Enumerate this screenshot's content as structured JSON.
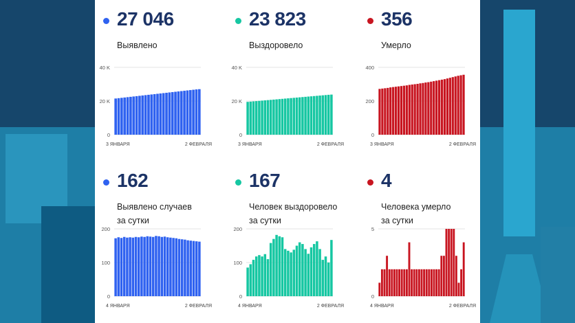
{
  "colors": {
    "blue": "#2f62f0",
    "teal": "#16c7a2",
    "red": "#c81520",
    "number": "#1c3366"
  },
  "cards": [
    {
      "value": "27 046",
      "label": [
        "Выявлено"
      ],
      "color": "#2f62f0"
    },
    {
      "value": "23 823",
      "label": [
        "Выздоровело"
      ],
      "color": "#16c7a2"
    },
    {
      "value": "356",
      "label": [
        "Умерло"
      ],
      "color": "#c81520"
    },
    {
      "value": "162",
      "label": [
        "Выявлено случаев",
        "за сутки"
      ],
      "color": "#2f62f0"
    },
    {
      "value": "167",
      "label": [
        "Человек выздоровело",
        "за сутки"
      ],
      "color": "#16c7a2"
    },
    {
      "value": "4",
      "label": [
        "Человека умерло",
        "за сутки"
      ],
      "color": "#c81520"
    }
  ],
  "chart_data": [
    {
      "type": "bar",
      "color": "#2f62f0",
      "ylim": [
        0,
        40000
      ],
      "yticks": [
        0,
        20000,
        40000
      ],
      "ytick_labels": [
        "0",
        "20 K",
        "40 K"
      ],
      "xtick_labels": [
        "3 ЯНВАРЯ",
        "2 ФЕВРАЛЯ"
      ],
      "grid": true,
      "values": [
        21500,
        21700,
        21900,
        22100,
        22300,
        22500,
        22700,
        22900,
        23100,
        23300,
        23500,
        23700,
        23900,
        24100,
        24300,
        24500,
        24700,
        24900,
        25100,
        25300,
        25500,
        25700,
        25900,
        26100,
        26300,
        26500,
        26700,
        26900,
        27046
      ]
    },
    {
      "type": "bar",
      "color": "#16c7a2",
      "ylim": [
        0,
        40000
      ],
      "yticks": [
        0,
        20000,
        40000
      ],
      "ytick_labels": [
        "0",
        "20 K",
        "40 K"
      ],
      "xtick_labels": [
        "3 ЯНВАРЯ",
        "2 ФЕВРАЛЯ"
      ],
      "grid": true,
      "values": [
        19500,
        19650,
        19800,
        19950,
        20100,
        20250,
        20400,
        20550,
        20700,
        20850,
        21000,
        21150,
        21300,
        21450,
        21600,
        21750,
        21900,
        22050,
        22200,
        22350,
        22500,
        22650,
        22800,
        22950,
        23100,
        23250,
        23400,
        23550,
        23700,
        23823
      ]
    },
    {
      "type": "bar",
      "color": "#c81520",
      "ylim": [
        0,
        400
      ],
      "yticks": [
        0,
        200,
        400
      ],
      "ytick_labels": [
        "0",
        "200",
        "400"
      ],
      "xtick_labels": [
        "3 ЯНВАРЯ",
        "2 ФЕВРАЛЯ"
      ],
      "grid": true,
      "values": [
        272,
        274,
        276,
        278,
        281,
        283,
        285,
        287,
        289,
        291,
        293,
        296,
        298,
        300,
        302,
        305,
        307,
        310,
        312,
        315,
        318,
        321,
        324,
        327,
        330,
        334,
        338,
        342,
        346,
        350,
        353,
        356
      ]
    },
    {
      "type": "bar",
      "color": "#2f62f0",
      "ylim": [
        0,
        200
      ],
      "yticks": [
        0,
        100,
        200
      ],
      "ytick_labels": [
        "0",
        "100",
        "200"
      ],
      "xtick_labels": [
        "4 ЯНВАРЯ",
        "2 ФЕВРАЛЯ"
      ],
      "grid": true,
      "values": [
        172,
        175,
        173,
        176,
        174,
        175,
        174,
        176,
        175,
        177,
        176,
        178,
        177,
        176,
        179,
        178,
        176,
        177,
        175,
        174,
        173,
        172,
        170,
        169,
        168,
        166,
        165,
        164,
        163,
        162
      ]
    },
    {
      "type": "bar",
      "color": "#16c7a2",
      "ylim": [
        0,
        200
      ],
      "yticks": [
        0,
        100,
        200
      ],
      "ytick_labels": [
        "0",
        "100",
        "200"
      ],
      "xtick_labels": [
        "4 ЯНВАРЯ",
        "2 ФЕВРАЛЯ"
      ],
      "grid": true,
      "values": [
        85,
        95,
        108,
        118,
        122,
        118,
        125,
        110,
        158,
        170,
        182,
        178,
        175,
        140,
        135,
        130,
        138,
        150,
        160,
        155,
        140,
        126,
        145,
        155,
        163,
        140,
        108,
        118,
        100,
        167
      ]
    },
    {
      "type": "bar",
      "color": "#c81520",
      "ylim": [
        0,
        5
      ],
      "yticks": [
        0,
        5
      ],
      "ytick_labels": [
        "0",
        "5"
      ],
      "xtick_labels": [
        "4 ЯНВАРЯ",
        "2 ФЕВРАЛЯ"
      ],
      "grid": true,
      "values": [
        1,
        2,
        2,
        3,
        2,
        2,
        2,
        2,
        2,
        2,
        2,
        2,
        4,
        2,
        2,
        2,
        2,
        2,
        2,
        2,
        2,
        2,
        2,
        2,
        2,
        3,
        3,
        5,
        5,
        5,
        5,
        3,
        1,
        2,
        4
      ]
    }
  ]
}
